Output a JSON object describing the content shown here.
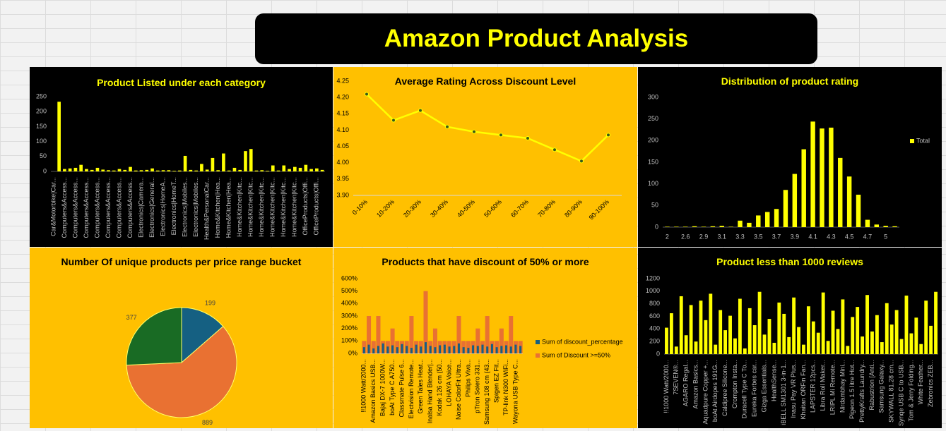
{
  "title": "Amazon Product Analysis",
  "chart_data": [
    {
      "type": "bar",
      "title": "Product Listed under each category",
      "categories": [
        "Car&Motorbike|Car...",
        null,
        "Computers&Access...",
        null,
        "Computers&Access...",
        null,
        "Computers&Access...",
        null,
        "Computers&Access...",
        null,
        "Computers&Access...",
        null,
        "Computers&Access...",
        null,
        "Computers&Access...",
        null,
        "Electronics|Camera...",
        null,
        "Electronics|General...",
        null,
        "Electronics|HomeA...",
        null,
        "Electronics|HomeT...",
        null,
        "Electronics|Mobiles...",
        null,
        "Electronics|Mobiles...",
        null,
        "Health&PersonalCar...",
        null,
        "Home&Kitchen|Hea...",
        null,
        "Home&Kitchen|Hea...",
        null,
        "Home&Kitchen|Kitc...",
        null,
        "Home&Kitchen|Kitc...",
        null,
        "Home&Kitchen|Kitc...",
        null,
        "Home&Kitchen|Kitc...",
        null,
        "Home&Kitchen|Kitc...",
        null,
        "Home&Kitchen|Kitc...",
        null,
        "OfficeProducts|Offi...",
        null,
        "OfficeProducts|Offi...",
        null
      ],
      "values": [
        0,
        233,
        8,
        10,
        12,
        22,
        8,
        5,
        12,
        6,
        4,
        3,
        8,
        5,
        15,
        3,
        4,
        5,
        10,
        3,
        4,
        4,
        2,
        3,
        52,
        5,
        3,
        25,
        6,
        45,
        4,
        60,
        3,
        12,
        5,
        68,
        75,
        3,
        4,
        2,
        20,
        3,
        20,
        8,
        15,
        12,
        22,
        8,
        10,
        5
      ],
      "color": "#ffff00",
      "ylim": [
        0,
        250
      ],
      "yticks": [
        0,
        50,
        100,
        150,
        200,
        250
      ],
      "grid": false
    },
    {
      "type": "line",
      "title": "Average Rating Across Discount Level",
      "categories": [
        "0-10%",
        "10-20%",
        "20-30%",
        "30-40%",
        "40-50%",
        "50-60%",
        "60-70%",
        "70-80%",
        "80-90%",
        "90-100%"
      ],
      "values": [
        4.21,
        4.13,
        4.16,
        4.11,
        4.095,
        4.085,
        4.075,
        4.04,
        4.005,
        4.085
      ],
      "color": "#ffff00",
      "ylim": [
        3.9,
        4.25
      ],
      "yticks": [
        {
          "value": 3.9,
          "label": "3.90"
        },
        3.95,
        {
          "value": 4,
          "label": "4.00"
        },
        4.05,
        {
          "value": 4.1,
          "label": "4.10"
        },
        4.15,
        {
          "value": 4.2,
          "label": "4.20"
        },
        4.25
      ],
      "grid": false
    },
    {
      "type": "bar",
      "title": "Distribution of product rating",
      "categories": [
        "2",
        null,
        "2.6",
        null,
        "2.9",
        null,
        "3.1",
        null,
        "3.3",
        null,
        "3.5",
        null,
        "3.7",
        null,
        "3.9",
        null,
        "4.1",
        null,
        "4.3",
        null,
        "4.5",
        null,
        "4.7",
        null,
        "5",
        null
      ],
      "series": [
        {
          "name": "Total",
          "color": "#ffff00",
          "values": [
            1,
            1,
            1,
            2,
            1,
            2,
            3,
            1,
            15,
            10,
            27,
            35,
            42,
            86,
            123,
            180,
            244,
            228,
            230,
            160,
            117,
            75,
            17,
            6,
            3,
            2
          ]
        }
      ],
      "ylim": [
        0,
        300
      ],
      "yticks": [
        0,
        50,
        100,
        150,
        200,
        250,
        300
      ],
      "legend": "right",
      "grid": false
    },
    {
      "type": "pie",
      "title": "Number Of unique products per price range bucket",
      "values": [
        199,
        889,
        377
      ],
      "colors": [
        "#156082",
        "#e97132",
        "#196b24"
      ]
    },
    {
      "type": "bar",
      "title": "Products that have discount of  50% or more",
      "categories": [
        "!!1000 Watt/2000...",
        null,
        "Amazon Basics USB...",
        null,
        "Bajaj DX-7 1000W...",
        null,
        "boAt Type C A750...",
        null,
        "Classmate Pulse 6...",
        null,
        "Electvision Remote...",
        null,
        "Green Tales Heat...",
        null,
        "Inalsa Hand Blender|...",
        null,
        "Kodak 126 cm (50...",
        null,
        "LOHAYA Voice...",
        null,
        "Noise ColorFit Ultra...",
        null,
        "Philips Viva...",
        null,
        "pTron Solero 331...",
        null,
        "Samsung 108 cm (43...",
        null,
        "Spigen EZ Fit...",
        null,
        "TP-link N300 WiFi...",
        null,
        "Wayona USB Type C...",
        null
      ],
      "series": [
        {
          "name": "Sum of discount_percentage",
          "color": "#156082",
          "values": [
            50,
            70,
            40,
            60,
            80,
            55,
            65,
            50,
            75,
            60,
            45,
            70,
            55,
            90,
            60,
            50,
            65,
            70,
            55,
            60,
            80,
            50,
            45,
            65,
            60,
            70,
            55,
            75,
            50,
            60,
            65,
            55,
            70,
            60
          ]
        },
        {
          "name": "Sum of Discount >=50%",
          "color": "#e97132",
          "values": [
            100,
            300,
            100,
            300,
            100,
            100,
            200,
            100,
            100,
            100,
            300,
            100,
            100,
            500,
            100,
            200,
            100,
            100,
            100,
            100,
            300,
            100,
            100,
            100,
            200,
            100,
            300,
            100,
            100,
            200,
            100,
            300,
            100,
            100
          ]
        }
      ],
      "ylim": [
        0,
        600
      ],
      "yticks": [
        {
          "value": 0,
          "label": "0%"
        },
        {
          "value": 100,
          "label": "100%"
        },
        {
          "value": 200,
          "label": "200%"
        },
        {
          "value": 300,
          "label": "300%"
        },
        {
          "value": 400,
          "label": "400%"
        },
        {
          "value": 500,
          "label": "500%"
        },
        {
          "value": 600,
          "label": "600%"
        }
      ],
      "legend": "right",
      "grid": false
    },
    {
      "type": "bar",
      "title": "Product less than 1000 reviews",
      "categories": [
        "!!1000 Watt/2000...",
        null,
        "7SEVEN®...",
        null,
        "AGARO Regal...",
        null,
        "Amazon Basics...",
        null,
        "Aquadpure Copper +...",
        null,
        "boAt Airdopes 191G...",
        null,
        "Caldipree Silicone...",
        null,
        "Crompton Insta...",
        null,
        "Duracell Type C To...",
        null,
        "Eureka Forbes car...",
        null,
        "Gizga Essentials...",
        null,
        "HealthSense...",
        null,
        "iBELL SM1301 3-in-1...",
        null,
        "Inasu Pay VR Plus...",
        null,
        "Khaitan ORFin Fan...",
        null,
        "LAPSTER 12pcs...",
        null,
        "Libra Roll Maker...",
        null,
        "LRIPL Mi Remote...",
        null,
        "Nirdambhay Mini...",
        null,
        "Pigeon 1.5 litre Hot...",
        null,
        "PrettyKrafts Laundry...",
        null,
        "Rabustrion [Anti...",
        null,
        "Samsung Galaxy...",
        null,
        "SKYWALL 81.28 cm...",
        null,
        "Synqe USB C to USB...",
        null,
        "Tom & Jerry Folding...",
        null,
        "White Feather...",
        null,
        "Zebronics ZEB...",
        null
      ],
      "values": [
        420,
        650,
        120,
        920,
        300,
        780,
        200,
        850,
        540,
        960,
        150,
        700,
        380,
        610,
        250,
        880,
        90,
        730,
        460,
        990,
        310,
        560,
        180,
        820,
        640,
        270,
        900,
        430,
        150,
        760,
        520,
        340,
        980,
        210,
        690,
        400,
        870,
        130,
        590,
        750,
        280,
        940,
        360,
        620,
        190,
        810,
        470,
        700,
        240,
        930,
        330,
        580,
        160,
        850,
        450,
        990
      ],
      "color": "#ffff00",
      "ylim": [
        0,
        1200
      ],
      "yticks": [
        0,
        200,
        400,
        600,
        800,
        1000,
        1200
      ],
      "grid": false
    }
  ]
}
